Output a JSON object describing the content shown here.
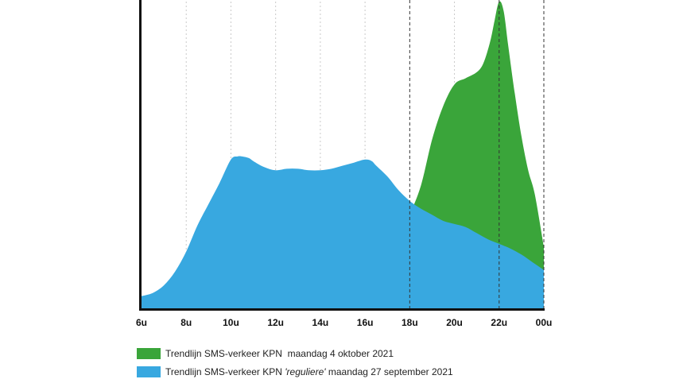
{
  "chart_data": {
    "type": "area",
    "x_ticks": [
      "6u",
      "8u",
      "10u",
      "12u",
      "14u",
      "16u",
      "18u",
      "20u",
      "22u",
      "00u"
    ],
    "xlim": [
      6,
      24
    ],
    "ylim": [
      0,
      100
    ],
    "grid": "vertical dotted lines at each tick",
    "dashed_markers": [
      18,
      22,
      24
    ],
    "legend_position": "bottom",
    "series": [
      {
        "name": "Trendlijn SMS-verkeer KPN  maandag 4 oktober 2021",
        "name_parts": [
          "Trendlijn SMS-verkeer KPN  maandag 4 oktober 2021"
        ],
        "color": "#3aa53a",
        "x": [
          18,
          18.5,
          19,
          19.5,
          20,
          20.5,
          21,
          21.3,
          21.6,
          21.8,
          22,
          22.2,
          22.4,
          22.7,
          23,
          23.3,
          23.6,
          24
        ],
        "y": [
          30.5,
          40,
          55,
          66,
          73,
          75,
          77,
          80,
          87,
          94,
          100,
          97,
          86,
          70,
          56,
          45,
          37,
          20
        ]
      },
      {
        "name": "Trendlijn SMS-verkeer KPN 'reguliere' maandag 27 september 2021",
        "name_parts": [
          "Trendlijn SMS-verkeer KPN ",
          "'reguliere'",
          " maandag 27 september 2021"
        ],
        "color": "#38a8e0",
        "x": [
          6,
          6.5,
          7,
          7.5,
          8,
          8.5,
          9,
          9.5,
          10,
          10.3,
          10.5,
          10.8,
          11,
          11.5,
          12,
          12.5,
          13,
          13.5,
          14,
          14.5,
          15,
          15.5,
          16,
          16.3,
          16.5,
          17,
          17.5,
          18,
          18.5,
          19,
          19.5,
          20,
          20.5,
          21,
          21.5,
          22,
          22.5,
          23,
          23.5,
          24
        ],
        "y": [
          4,
          5,
          7.5,
          12,
          18.5,
          27,
          34,
          41,
          48.5,
          49.5,
          49.5,
          49,
          48,
          46,
          45,
          45.5,
          45.5,
          45,
          45,
          45.5,
          46.5,
          47.5,
          48.5,
          48,
          46.5,
          43,
          38.5,
          35,
          32.5,
          30.5,
          28.5,
          27.5,
          26.5,
          24.5,
          22.5,
          21,
          19.5,
          17.5,
          15,
          12.5
        ]
      }
    ]
  }
}
